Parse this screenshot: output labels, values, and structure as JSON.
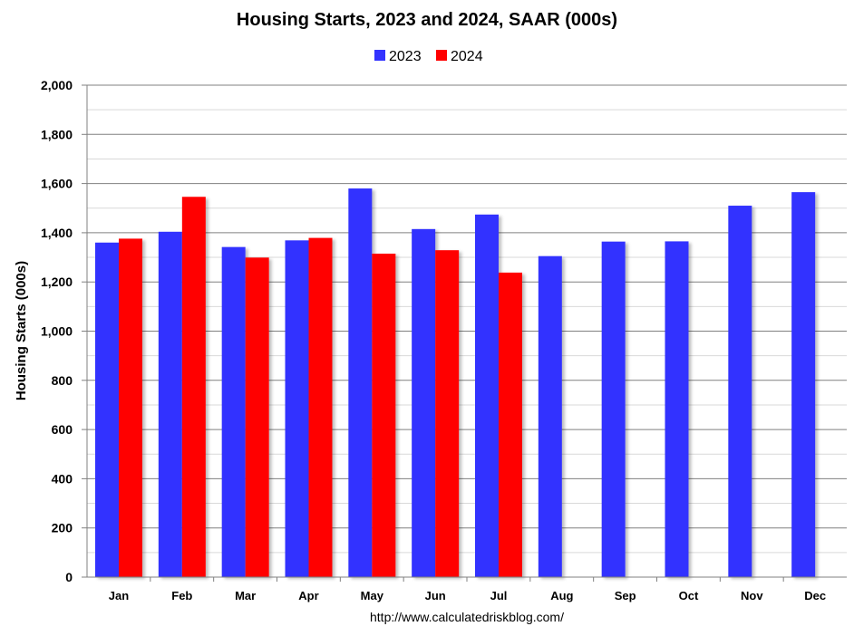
{
  "chart_data": {
    "type": "bar",
    "title": "Housing Starts,  2023 and 2024, SAAR (000s)",
    "ylabel": "Housing Starts (000s)",
    "xlabel": "",
    "source": "http://www.calculatedriskblog.com/",
    "categories": [
      "Jan",
      "Feb",
      "Mar",
      "Apr",
      "May",
      "Jun",
      "Jul",
      "Aug",
      "Sep",
      "Oct",
      "Nov",
      "Dec"
    ],
    "ylim": [
      0,
      2000
    ],
    "yticks": [
      0,
      200,
      400,
      600,
      800,
      1000,
      1200,
      1400,
      1600,
      1800,
      2000
    ],
    "ytick_labels": [
      "0",
      "200",
      "400",
      "600",
      "800",
      "1,000",
      "1,200",
      "1,400",
      "1,600",
      "1,800",
      "2,000"
    ],
    "grid": true,
    "legend_position": "top-center",
    "series": [
      {
        "name": "2023",
        "color": "#3333ff",
        "values": [
          1360,
          1404,
          1342,
          1369,
          1580,
          1415,
          1474,
          1305,
          1364,
          1365,
          1510,
          1565
        ]
      },
      {
        "name": "2024",
        "color": "#ff0000",
        "values": [
          1376,
          1546,
          1299,
          1379,
          1315,
          1329,
          1238,
          null,
          null,
          null,
          null,
          null
        ]
      }
    ]
  }
}
